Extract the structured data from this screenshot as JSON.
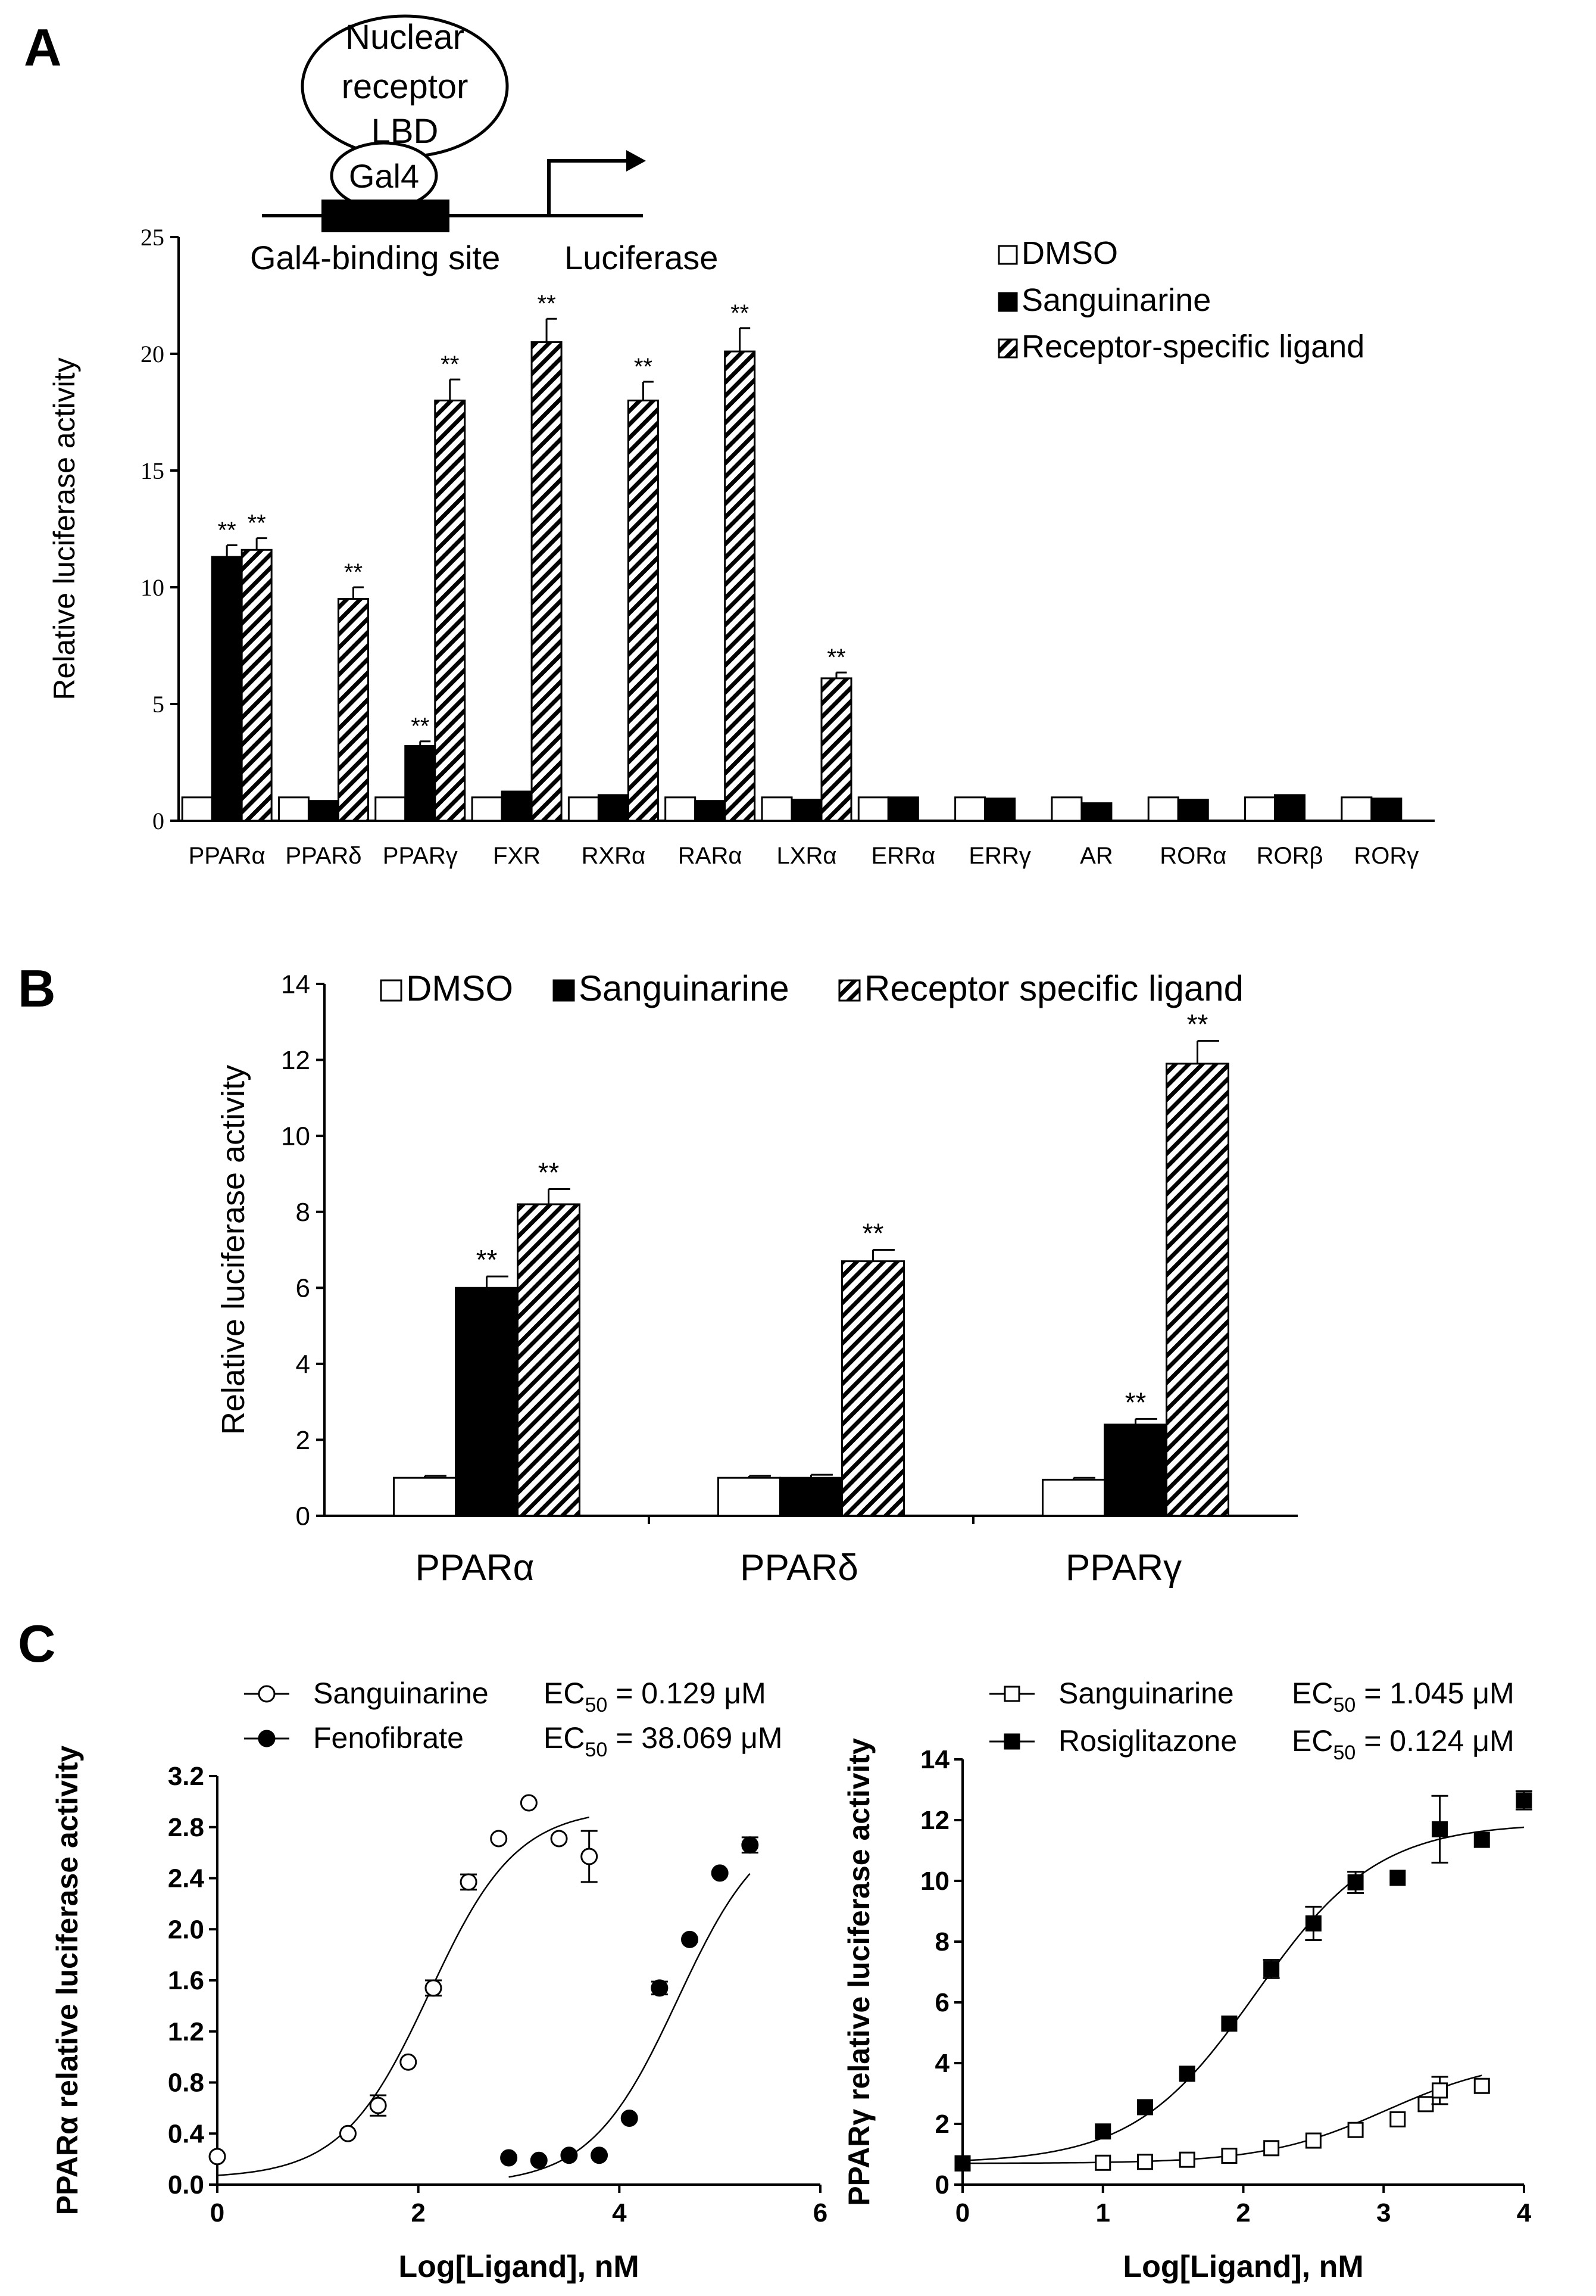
{
  "panels": {
    "a_label": "A",
    "b_label": "B",
    "c_label": "C"
  },
  "diagram": {
    "receptor_line1": "Nuclear",
    "receptor_line2": "receptor",
    "receptor_line3": "LBD",
    "gal4": "Gal4",
    "binding_site": "Gal4-binding site",
    "reporter": "Luciferase"
  },
  "chart_data": [
    {
      "id": "A",
      "type": "bar",
      "title": "",
      "xlabel": "",
      "ylabel": "Relative luciferase activity",
      "ylim": [
        0,
        25
      ],
      "yticks": [
        "0",
        "5",
        "10",
        "15",
        "20",
        "25"
      ],
      "categories": [
        "PPARα",
        "PPARδ",
        "PPARγ",
        "FXR",
        "RXRα",
        "RARα",
        "LXRα",
        "ERRα",
        "ERRγ",
        "AR",
        "RORα",
        "RORβ",
        "RORγ"
      ],
      "series": [
        {
          "name": "DMSO",
          "style": "open",
          "values": [
            1,
            1,
            1,
            1,
            1,
            1,
            1,
            1,
            1,
            1,
            1,
            1,
            1
          ],
          "errors": [
            0,
            0,
            0,
            0,
            0,
            0,
            0,
            0,
            0,
            0,
            0,
            0,
            0
          ],
          "sig": [
            "",
            "",
            "",
            "",
            "",
            "",
            "",
            "",
            "",
            "",
            "",
            "",
            ""
          ]
        },
        {
          "name": "Sanguinarine",
          "style": "filled",
          "values": [
            11.3,
            0.85,
            3.2,
            1.25,
            1.1,
            0.85,
            0.9,
            1.0,
            0.95,
            0.75,
            0.9,
            1.1,
            0.95
          ],
          "errors": [
            0.5,
            0,
            0.2,
            0,
            0,
            0,
            0,
            0,
            0,
            0,
            0,
            0,
            0
          ],
          "sig": [
            "**",
            "",
            "**",
            "",
            "",
            "",
            "",
            "",
            "",
            "",
            "",
            "",
            ""
          ]
        },
        {
          "name": "Receptor-specific ligand",
          "style": "hatched",
          "values": [
            11.6,
            9.5,
            18.0,
            20.5,
            18.0,
            20.1,
            6.1,
            null,
            null,
            null,
            null,
            null,
            null
          ],
          "errors": [
            0.5,
            0.5,
            0.9,
            1.0,
            0.8,
            1.0,
            0.25,
            0,
            0,
            0,
            0,
            0,
            0
          ],
          "sig": [
            "**",
            "**",
            "**",
            "**",
            "**",
            "**",
            "**",
            "",
            "",
            "",
            "",
            "",
            ""
          ]
        }
      ]
    },
    {
      "id": "B",
      "type": "bar",
      "title": "",
      "xlabel": "",
      "ylabel": "Relative luciferase activity",
      "ylim": [
        0,
        14
      ],
      "yticks": [
        "0",
        "2",
        "4",
        "6",
        "8",
        "10",
        "12",
        "14"
      ],
      "categories": [
        "PPARα",
        "PPARδ",
        "PPARγ"
      ],
      "series": [
        {
          "name": "DMSO",
          "style": "open",
          "values": [
            1,
            1,
            0.95
          ],
          "errors": [
            0.05,
            0.05,
            0.05
          ],
          "sig": [
            "",
            "",
            ""
          ]
        },
        {
          "name": "Sanguinarine",
          "style": "filled",
          "values": [
            6.0,
            1.0,
            2.4
          ],
          "errors": [
            0.3,
            0.08,
            0.15
          ],
          "sig": [
            "**",
            "",
            "**"
          ]
        },
        {
          "name": "Receptor specific ligand",
          "style": "hatched",
          "values": [
            8.2,
            6.7,
            11.9
          ],
          "errors": [
            0.4,
            0.3,
            0.6
          ],
          "sig": [
            "**",
            "**",
            "**"
          ]
        }
      ]
    },
    {
      "id": "C1",
      "type": "scatter",
      "title": "",
      "xlabel": "Log[Ligand], nM",
      "ylabel": "PPARα relative luciferase activity",
      "xlim": [
        0,
        6
      ],
      "ylim": [
        0,
        3.2
      ],
      "xticks": [
        "0",
        "2",
        "4",
        "6"
      ],
      "yticks": [
        "0.0",
        "0.4",
        "0.8",
        "1.2",
        "1.6",
        "2.0",
        "2.4",
        "2.8",
        "3.2"
      ],
      "series": [
        {
          "name": "Sanguinarine",
          "ec50_label": "EC",
          "ec50_sub": "50",
          "ec50_value": " = 0.129 μM",
          "marker": "open-circle",
          "x": [
            0,
            1.3,
            1.6,
            1.9,
            2.15,
            2.5,
            2.8,
            3.1,
            3.4,
            3.7
          ],
          "y": [
            0.22,
            0.4,
            0.62,
            0.96,
            1.54,
            2.37,
            2.71,
            2.99,
            2.71,
            2.57
          ],
          "err": [
            0,
            0,
            0.08,
            0,
            0.06,
            0.06,
            0,
            0,
            0,
            0.2
          ],
          "fit": {
            "bottom": 0.05,
            "top": 2.95,
            "logec50": 2.11,
            "hill": 1.0,
            "xmin": 0,
            "xmax": 3.7
          }
        },
        {
          "name": "Fenofibrate",
          "ec50_label": "EC",
          "ec50_sub": "50",
          "ec50_value": " = 38.069 μM",
          "marker": "filled-circle",
          "x": [
            2.9,
            3.2,
            3.5,
            3.8,
            4.1,
            4.4,
            4.7,
            5.0,
            5.3
          ],
          "y": [
            0.21,
            0.19,
            0.23,
            0.23,
            0.52,
            1.54,
            1.92,
            2.44,
            2.66
          ],
          "err": [
            0,
            0,
            0,
            0,
            0,
            0.05,
            0,
            0,
            0.06
          ],
          "fit": {
            "bottom": 0.0,
            "top": 2.9,
            "logec50": 4.58,
            "hill": 1.0,
            "xmin": 2.9,
            "xmax": 5.3
          }
        }
      ]
    },
    {
      "id": "C2",
      "type": "scatter",
      "title": "",
      "xlabel": "Log[Ligand], nM",
      "ylabel": "PPARγ relative luciferase activity",
      "xlim": [
        0,
        4
      ],
      "ylim": [
        0,
        14
      ],
      "xticks": [
        "0",
        "1",
        "2",
        "3",
        "4"
      ],
      "yticks": [
        "0",
        "2",
        "4",
        "6",
        "8",
        "10",
        "12",
        "14"
      ],
      "series": [
        {
          "name": "Sanguinarine",
          "ec50_label": "EC",
          "ec50_sub": "50",
          "ec50_value": " = 1.045 μM",
          "marker": "open-square",
          "x": [
            0,
            1.0,
            1.3,
            1.6,
            1.9,
            2.2,
            2.5,
            2.8,
            3.1,
            3.3,
            3.4,
            3.7
          ],
          "y": [
            0.7,
            0.72,
            0.75,
            0.82,
            0.95,
            1.2,
            1.45,
            1.8,
            2.15,
            2.65,
            3.1,
            3.25
          ],
          "err": [
            0,
            0,
            0,
            0,
            0,
            0,
            0,
            0,
            0,
            0,
            0.45,
            0
          ],
          "fit": {
            "bottom": 0.7,
            "top": 4.2,
            "logec50": 3.02,
            "hill": 1.0,
            "xmin": 0,
            "xmax": 3.7
          }
        },
        {
          "name": "Rosiglitazone",
          "ec50_label": "EC",
          "ec50_sub": "50",
          "ec50_value": " = 0.124 μM",
          "marker": "filled-square",
          "x": [
            0,
            1.0,
            1.3,
            1.6,
            1.9,
            2.2,
            2.5,
            2.8,
            3.1,
            3.4,
            3.7,
            4.0
          ],
          "y": [
            0.7,
            1.75,
            2.55,
            3.65,
            5.3,
            7.1,
            8.6,
            9.95,
            10.1,
            11.7,
            11.35,
            12.65
          ],
          "err": [
            0,
            0,
            0,
            0,
            0,
            0.3,
            0.55,
            0.35,
            0,
            1.1,
            0,
            0.3
          ],
          "fit": {
            "bottom": 0.7,
            "top": 11.9,
            "logec50": 2.09,
            "hill": 1.0,
            "xmin": 0,
            "xmax": 4.0
          }
        }
      ]
    }
  ]
}
